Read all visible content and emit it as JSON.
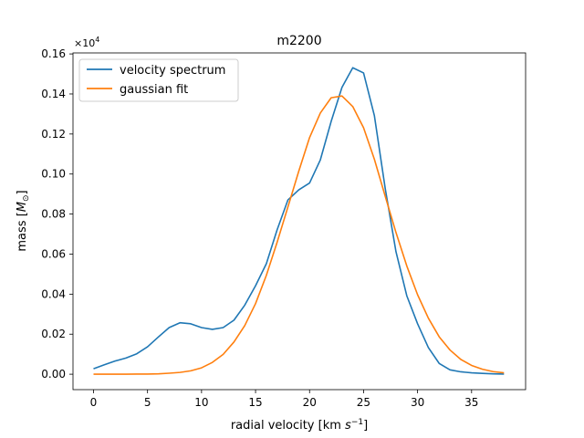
{
  "chart_data": {
    "type": "line",
    "title": "m2200",
    "xlabel_main": "radial velocity [km ",
    "xlabel_unit": "s",
    "xlabel_exp": "−1",
    "xlabel_close": "]",
    "ylabel_main": "mass [",
    "ylabel_unit": "M",
    "ylabel_sub": "⊙",
    "ylabel_close": "]",
    "y_offset_base": "×10",
    "y_offset_exp": "4",
    "xlim": [
      -1.9,
      40.0
    ],
    "ylim": [
      -0.0077,
      0.1605
    ],
    "xticks": [
      0,
      5,
      10,
      15,
      20,
      25,
      30,
      35
    ],
    "xtick_labels": [
      "0",
      "5",
      "10",
      "15",
      "20",
      "25",
      "30",
      "35"
    ],
    "yticks": [
      0.0,
      0.02,
      0.04,
      0.06,
      0.08,
      0.1,
      0.12,
      0.14,
      0.16
    ],
    "ytick_labels": [
      "0.00",
      "0.02",
      "0.04",
      "0.06",
      "0.08",
      "0.10",
      "0.12",
      "0.14",
      "0.16"
    ],
    "grid": false,
    "legend_position": "top-left",
    "x": [
      0,
      1,
      2,
      3,
      4,
      5,
      6,
      7,
      8,
      9,
      10,
      11,
      12,
      13,
      14,
      15,
      16,
      17,
      18,
      19,
      20,
      21,
      22,
      23,
      24,
      25,
      26,
      27,
      28,
      29,
      30,
      31,
      32,
      33,
      34,
      35,
      36,
      37,
      38
    ],
    "series": [
      {
        "name": "velocity spectrum",
        "color": "#1f77b4",
        "values": [
          0.0027,
          0.0047,
          0.0066,
          0.0081,
          0.0102,
          0.0137,
          0.0186,
          0.0233,
          0.0257,
          0.0252,
          0.0233,
          0.0224,
          0.0233,
          0.027,
          0.0345,
          0.0442,
          0.0552,
          0.0722,
          0.0871,
          0.0921,
          0.0955,
          0.1071,
          0.1263,
          0.1433,
          0.1531,
          0.1505,
          0.1292,
          0.0929,
          0.0612,
          0.0392,
          0.0252,
          0.0133,
          0.0054,
          0.0022,
          0.0012,
          0.0007,
          0.0004,
          0.0002,
          0.0001
        ]
      },
      {
        "name": "gaussian fit",
        "color": "#ff7f0e",
        "values": [
          0.0,
          0.0,
          0.0,
          0.0,
          0.0001,
          0.0001,
          0.0002,
          0.0005,
          0.0009,
          0.0017,
          0.0032,
          0.0059,
          0.0099,
          0.0161,
          0.0243,
          0.0353,
          0.0494,
          0.066,
          0.0836,
          0.1014,
          0.1182,
          0.1305,
          0.1381,
          0.139,
          0.1337,
          0.1231,
          0.1074,
          0.089,
          0.0708,
          0.0541,
          0.0397,
          0.028,
          0.0187,
          0.0121,
          0.0074,
          0.0044,
          0.0025,
          0.0013,
          0.0007
        ]
      }
    ]
  }
}
